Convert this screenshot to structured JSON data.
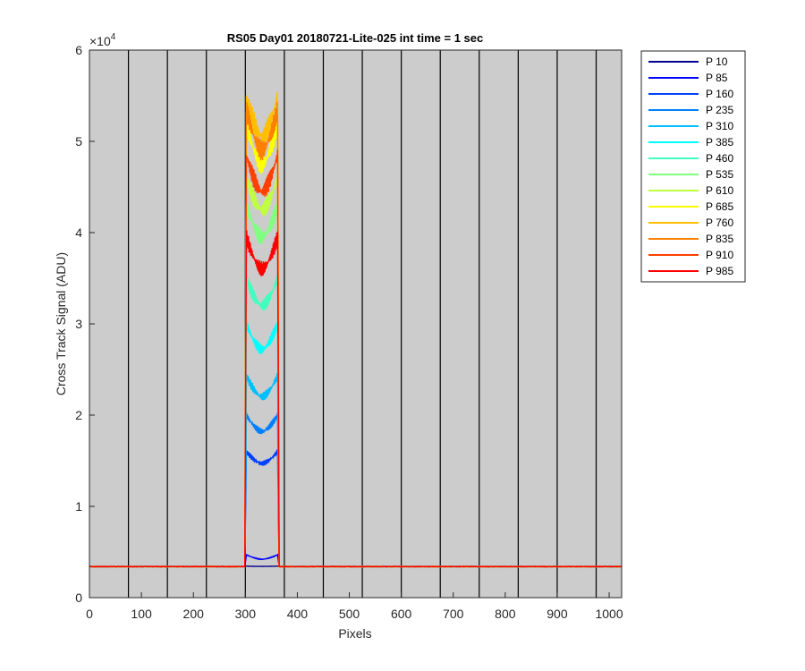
{
  "chart_data": {
    "type": "line",
    "title": "RS05 Day01 20180721-Lite-025 int time = 1 sec",
    "xlabel": "Pixels",
    "ylabel": "Cross Track Signal (ADU)",
    "y_exponent_label": "×10",
    "y_exponent_power": "4",
    "xlim": [
      0,
      1024
    ],
    "ylim": [
      0,
      60000
    ],
    "x_ticks": [
      0,
      100,
      200,
      300,
      400,
      500,
      600,
      700,
      800,
      900,
      1000
    ],
    "x_tick_labels": [
      "0",
      "100",
      "200",
      "300",
      "400",
      "500",
      "600",
      "700",
      "800",
      "900",
      "1000"
    ],
    "y_ticks": [
      0,
      10000,
      20000,
      30000,
      40000,
      50000,
      60000
    ],
    "y_tick_labels": [
      "0",
      "1",
      "2",
      "3",
      "4",
      "5",
      "6"
    ],
    "background": "#cccccc",
    "vertical_lines_at": [
      75,
      150,
      225,
      300,
      375,
      450,
      525,
      600,
      675,
      750,
      825,
      900,
      975
    ],
    "vertical_line_color": "#000000",
    "legend_position": "outside-right-top",
    "baseline": 3400,
    "signal_region": [
      302,
      362
    ],
    "series": [
      {
        "name": "P 10",
        "color": "#00008f",
        "plateau": 3450,
        "dip": 3420
      },
      {
        "name": "P 85",
        "color": "#0000ff",
        "plateau": 4700,
        "dip": 4200
      },
      {
        "name": "P 160",
        "color": "#0040ff",
        "plateau": 16000,
        "dip": 14700
      },
      {
        "name": "P 235",
        "color": "#0080ff",
        "plateau": 20000,
        "dip": 18200
      },
      {
        "name": "P 310",
        "color": "#00bfff",
        "plateau": 24300,
        "dip": 22000
      },
      {
        "name": "P 385",
        "color": "#00ffff",
        "plateau": 30000,
        "dip": 27200
      },
      {
        "name": "P 460",
        "color": "#40ffbf",
        "plateau": 35000,
        "dip": 32000
      },
      {
        "name": "P 535",
        "color": "#80ff80",
        "plateau": 43000,
        "dip": 39500
      },
      {
        "name": "P 610",
        "color": "#bfff40",
        "plateau": 46000,
        "dip": 42500
      },
      {
        "name": "P 685",
        "color": "#ffff00",
        "plateau": 52000,
        "dip": 47500
      },
      {
        "name": "P 760",
        "color": "#ffbf00",
        "plateau": 55000,
        "dip": 50500
      },
      {
        "name": "P 835",
        "color": "#ff8000",
        "plateau": 53500,
        "dip": 49000
      },
      {
        "name": "P 910",
        "color": "#ff4000",
        "plateau": 48500,
        "dip": 44500
      },
      {
        "name": "P 985",
        "color": "#ff0000",
        "plateau": 39500,
        "dip": 36000
      }
    ]
  }
}
